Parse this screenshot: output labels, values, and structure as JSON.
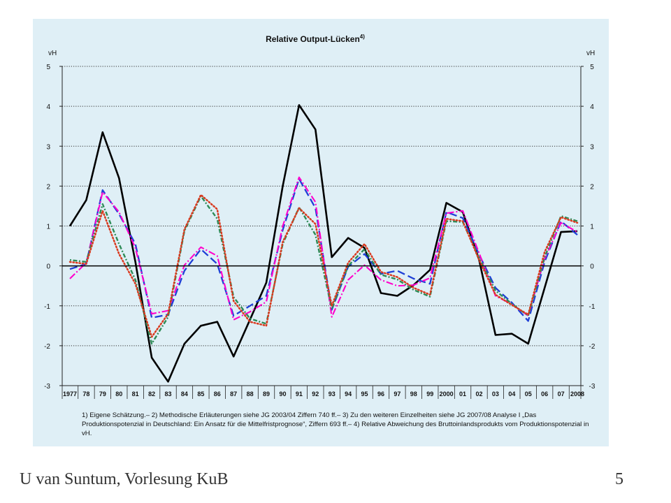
{
  "slide": {
    "footer_left": "U van Suntum, Vorlesung KuB",
    "page_number": "5",
    "footnote": "1) Eigene Schätzung.– 2) Methodische Erläuterungen siehe JG 2003/04 Ziffern 740 ff.– 3) Zu den weiteren Einzelheiten siehe JG 2007/08 Analyse I „Das Produktionspotenzial in Deutschland: Ein Ansatz für die Mittelfristprognose“, Ziffern 693 ff.– 4) Relative Abweichung des Bruttoinlandsprodukts vom Produktionspotenzial in vH."
  },
  "chart_data": {
    "type": "line",
    "title": "Relative Output-Lücken",
    "title_sup": "4)",
    "ylabel": "vH",
    "ylabel_right": "vH",
    "ylim": [
      -3,
      5
    ],
    "yticks": [
      5,
      4,
      3,
      2,
      1,
      0,
      -1,
      -2,
      -3
    ],
    "grid": "horizontal dotted",
    "categories": [
      "1977",
      "78",
      "79",
      "80",
      "81",
      "82",
      "83",
      "84",
      "85",
      "86",
      "87",
      "88",
      "89",
      "90",
      "91",
      "92",
      "93",
      "94",
      "95",
      "96",
      "97",
      "98",
      "99",
      "2000",
      "01",
      "02",
      "03",
      "04",
      "05",
      "06",
      "07",
      "2008"
    ],
    "series": [
      {
        "color": "#000000",
        "dash": "solid",
        "width": 2.6,
        "values": [
          1.0,
          1.65,
          3.35,
          2.2,
          0.1,
          -2.3,
          -2.9,
          -1.95,
          -1.5,
          -1.4,
          -2.27,
          -1.35,
          -0.42,
          2.0,
          4.03,
          3.42,
          0.22,
          0.7,
          0.45,
          -0.68,
          -0.75,
          -0.48,
          -0.1,
          1.58,
          1.35,
          0.15,
          -1.73,
          -1.7,
          -1.95,
          -0.55,
          0.85,
          0.87
        ]
      },
      {
        "color": "#1f3fd6",
        "dash": "longdash",
        "width": 2.3,
        "values": [
          -0.08,
          0.05,
          1.9,
          1.3,
          0.55,
          -1.3,
          -1.22,
          -0.12,
          0.42,
          0.05,
          -1.25,
          -1.0,
          -0.75,
          0.9,
          2.18,
          1.45,
          -1.1,
          -0.02,
          0.3,
          -0.2,
          -0.12,
          -0.32,
          -0.45,
          1.35,
          1.2,
          0.28,
          -0.55,
          -0.92,
          -1.38,
          0.1,
          1.12,
          0.78
        ]
      },
      {
        "color": "#ff00cc",
        "dash": "dashdot",
        "width": 2.1,
        "values": [
          -0.32,
          0.08,
          1.85,
          1.35,
          0.45,
          -1.2,
          -1.12,
          0.02,
          0.47,
          0.25,
          -1.35,
          -1.15,
          -0.9,
          1.0,
          2.22,
          1.6,
          -1.28,
          -0.35,
          0.02,
          -0.35,
          -0.5,
          -0.48,
          -0.3,
          1.32,
          1.38,
          0.32,
          -0.75,
          -0.96,
          -1.25,
          0.18,
          1.08,
          0.85
        ]
      },
      {
        "color": "#2e8b57",
        "dash": "dotdash",
        "width": 2.4,
        "values": [
          0.15,
          0.1,
          1.55,
          0.55,
          -0.35,
          -1.95,
          -1.28,
          0.88,
          1.75,
          1.18,
          -0.78,
          -1.32,
          -1.45,
          0.55,
          1.47,
          0.78,
          -1.08,
          0.0,
          0.42,
          -0.22,
          -0.34,
          -0.6,
          -0.77,
          1.12,
          1.1,
          0.2,
          -0.62,
          -0.95,
          -1.25,
          0.22,
          1.25,
          1.12
        ]
      },
      {
        "color": "#d93a1f",
        "dash": "dotted",
        "width": 2.5,
        "values": [
          0.1,
          0.05,
          1.38,
          0.3,
          -0.45,
          -1.78,
          -1.2,
          0.92,
          1.78,
          1.42,
          -0.88,
          -1.4,
          -1.5,
          0.6,
          1.45,
          1.05,
          -1.0,
          0.08,
          0.55,
          -0.15,
          -0.28,
          -0.55,
          -0.72,
          1.18,
          1.12,
          0.15,
          -0.72,
          -0.98,
          -1.22,
          0.35,
          1.22,
          1.08
        ]
      }
    ]
  }
}
